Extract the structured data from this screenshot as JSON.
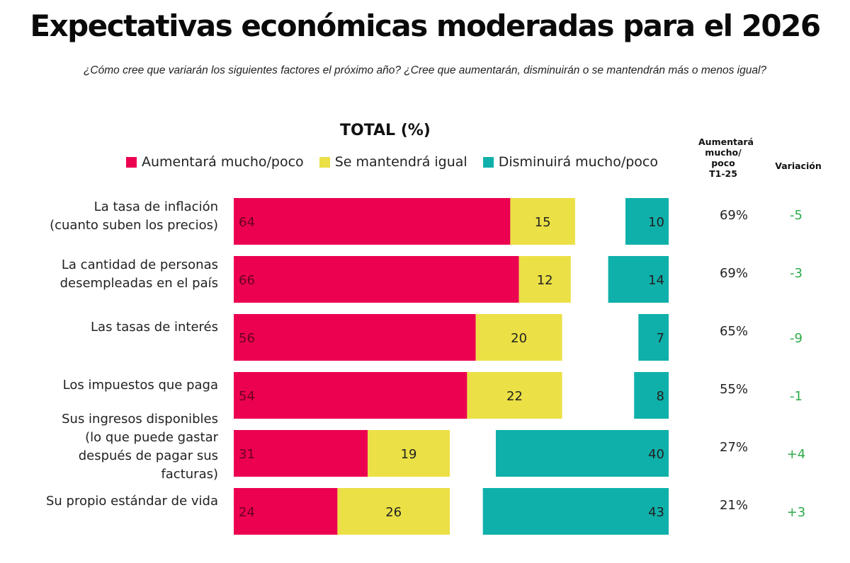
{
  "header": {
    "title": "Expectativas económicas moderadas para el 2026",
    "subtitle": "¿Cómo cree que variarán los siguientes factores el próximo año? ¿Cree que aumentarán, disminuirán o se mantendrán más o menos igual?"
  },
  "columns": {
    "previous_header": [
      "Aumentará",
      "mucho/",
      "poco",
      "T1-25"
    ],
    "variation_header": "Variación"
  },
  "colors": {
    "increase": "#ec0050",
    "same": "#ebe046",
    "decrease": "#0fb0aa",
    "variation": "#2eaa4a"
  },
  "chart_data": {
    "type": "bar",
    "orientation": "horizontal",
    "stacked": true,
    "title": "TOTAL (%)",
    "legend_position": "top",
    "categories": [
      [
        "La tasa de inflación",
        "(cuanto suben los precios)"
      ],
      [
        "La cantidad de personas",
        "desempleadas en el país"
      ],
      [
        "Las tasas de interés"
      ],
      [
        "Los impuestos que paga"
      ],
      [
        "Sus ingresos disponibles",
        "(lo que puede gastar",
        "después de pagar sus",
        "facturas)"
      ],
      [
        "Su propio estándar de vida"
      ]
    ],
    "series": [
      {
        "name": "Aumentará mucho/poco",
        "color": "#ec0050",
        "values": [
          64,
          66,
          56,
          54,
          31,
          24
        ]
      },
      {
        "name": "Se mantendrá igual",
        "color": "#ebe046",
        "values": [
          15,
          12,
          20,
          22,
          19,
          26
        ]
      },
      {
        "name": "Disminuirá mucho/poco",
        "color": "#0fb0aa",
        "values": [
          10,
          14,
          7,
          8,
          40,
          43
        ]
      }
    ],
    "previous_increase_T1_25": [
      "69%",
      "69%",
      "65%",
      "55%",
      "27%",
      "21%"
    ],
    "variation": [
      "-5",
      "-3",
      "-9",
      "-1",
      "+4",
      "+3"
    ],
    "xlim": [
      0,
      100
    ]
  }
}
